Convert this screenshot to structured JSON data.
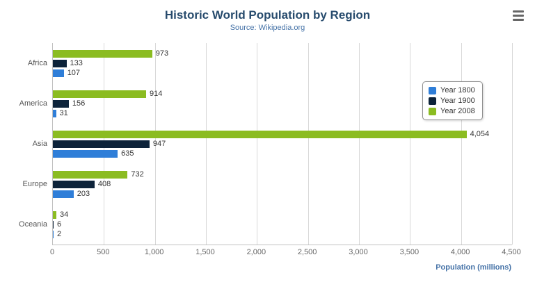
{
  "title": "Historic World Population by Region",
  "subtitle": "Source: Wikipedia.org",
  "menu": {
    "icon": "hamburger-icon"
  },
  "chart_data": {
    "type": "bar",
    "orientation": "horizontal",
    "title": "Historic World Population by Region",
    "subtitle": "Source: Wikipedia.org",
    "categories": [
      "Africa",
      "America",
      "Asia",
      "Europe",
      "Oceania"
    ],
    "series": [
      {
        "name": "Year 1800",
        "color": "#2f7ed8",
        "values": [
          107,
          31,
          635,
          203,
          2
        ]
      },
      {
        "name": "Year 1900",
        "color": "#0d233a",
        "values": [
          133,
          156,
          947,
          408,
          6
        ]
      },
      {
        "name": "Year 2008",
        "color": "#8bbc21",
        "values": [
          973,
          914,
          4054,
          732,
          34
        ]
      }
    ],
    "xlabel": "Population (millions)",
    "ylabel": "",
    "xlim": [
      0,
      4500
    ],
    "tick_interval": 500,
    "tick_labels": [
      "0",
      "500",
      "1,000",
      "1,500",
      "2,000",
      "2,500",
      "3,000",
      "3,500",
      "4,000",
      "4,500"
    ],
    "grid": true,
    "legend_position": "right",
    "data_labels": true
  }
}
